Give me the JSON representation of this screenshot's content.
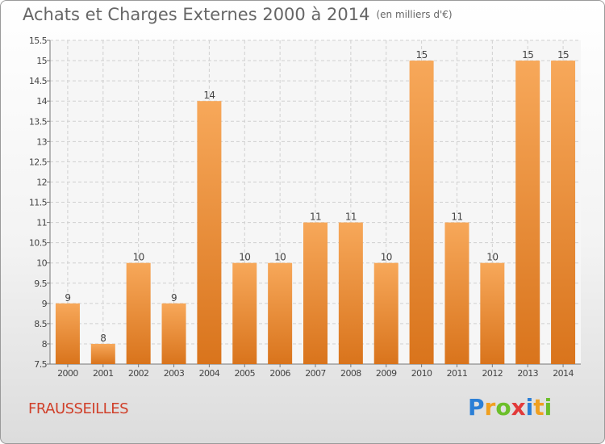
{
  "header": {
    "title": "Achats et Charges Externes 2000 à 2014",
    "unit": "(en milliers d'€)"
  },
  "footer": {
    "town": "FRAUSSEILLES"
  },
  "logo": {
    "letters": [
      "P",
      "r",
      "o",
      "x",
      "i",
      "t",
      "i"
    ],
    "colors": [
      "#2b7fd6",
      "#f0a020",
      "#6cbf2a",
      "#e23a3a",
      "#2b7fd6",
      "#f0a020",
      "#6cbf2a"
    ]
  },
  "chart_data": {
    "type": "bar",
    "categories": [
      "2000",
      "2001",
      "2002",
      "2003",
      "2004",
      "2005",
      "2006",
      "2007",
      "2008",
      "2009",
      "2010",
      "2011",
      "2012",
      "2013",
      "2014"
    ],
    "values": [
      9,
      8,
      10,
      9,
      14,
      10,
      10,
      11,
      11,
      10,
      15,
      11,
      10,
      15,
      15
    ],
    "ylim": [
      7.5,
      15.5
    ],
    "yticks": [
      "7.5",
      "8",
      "8.5",
      "9",
      "9.5",
      "10",
      "10.5",
      "11",
      "11.5",
      "12",
      "12.5",
      "13",
      "13.5",
      "14",
      "14.5",
      "15",
      "15.5"
    ],
    "grid": true,
    "bar_color_top": "#f7a85a",
    "bar_color_bottom": "#d9741c"
  }
}
